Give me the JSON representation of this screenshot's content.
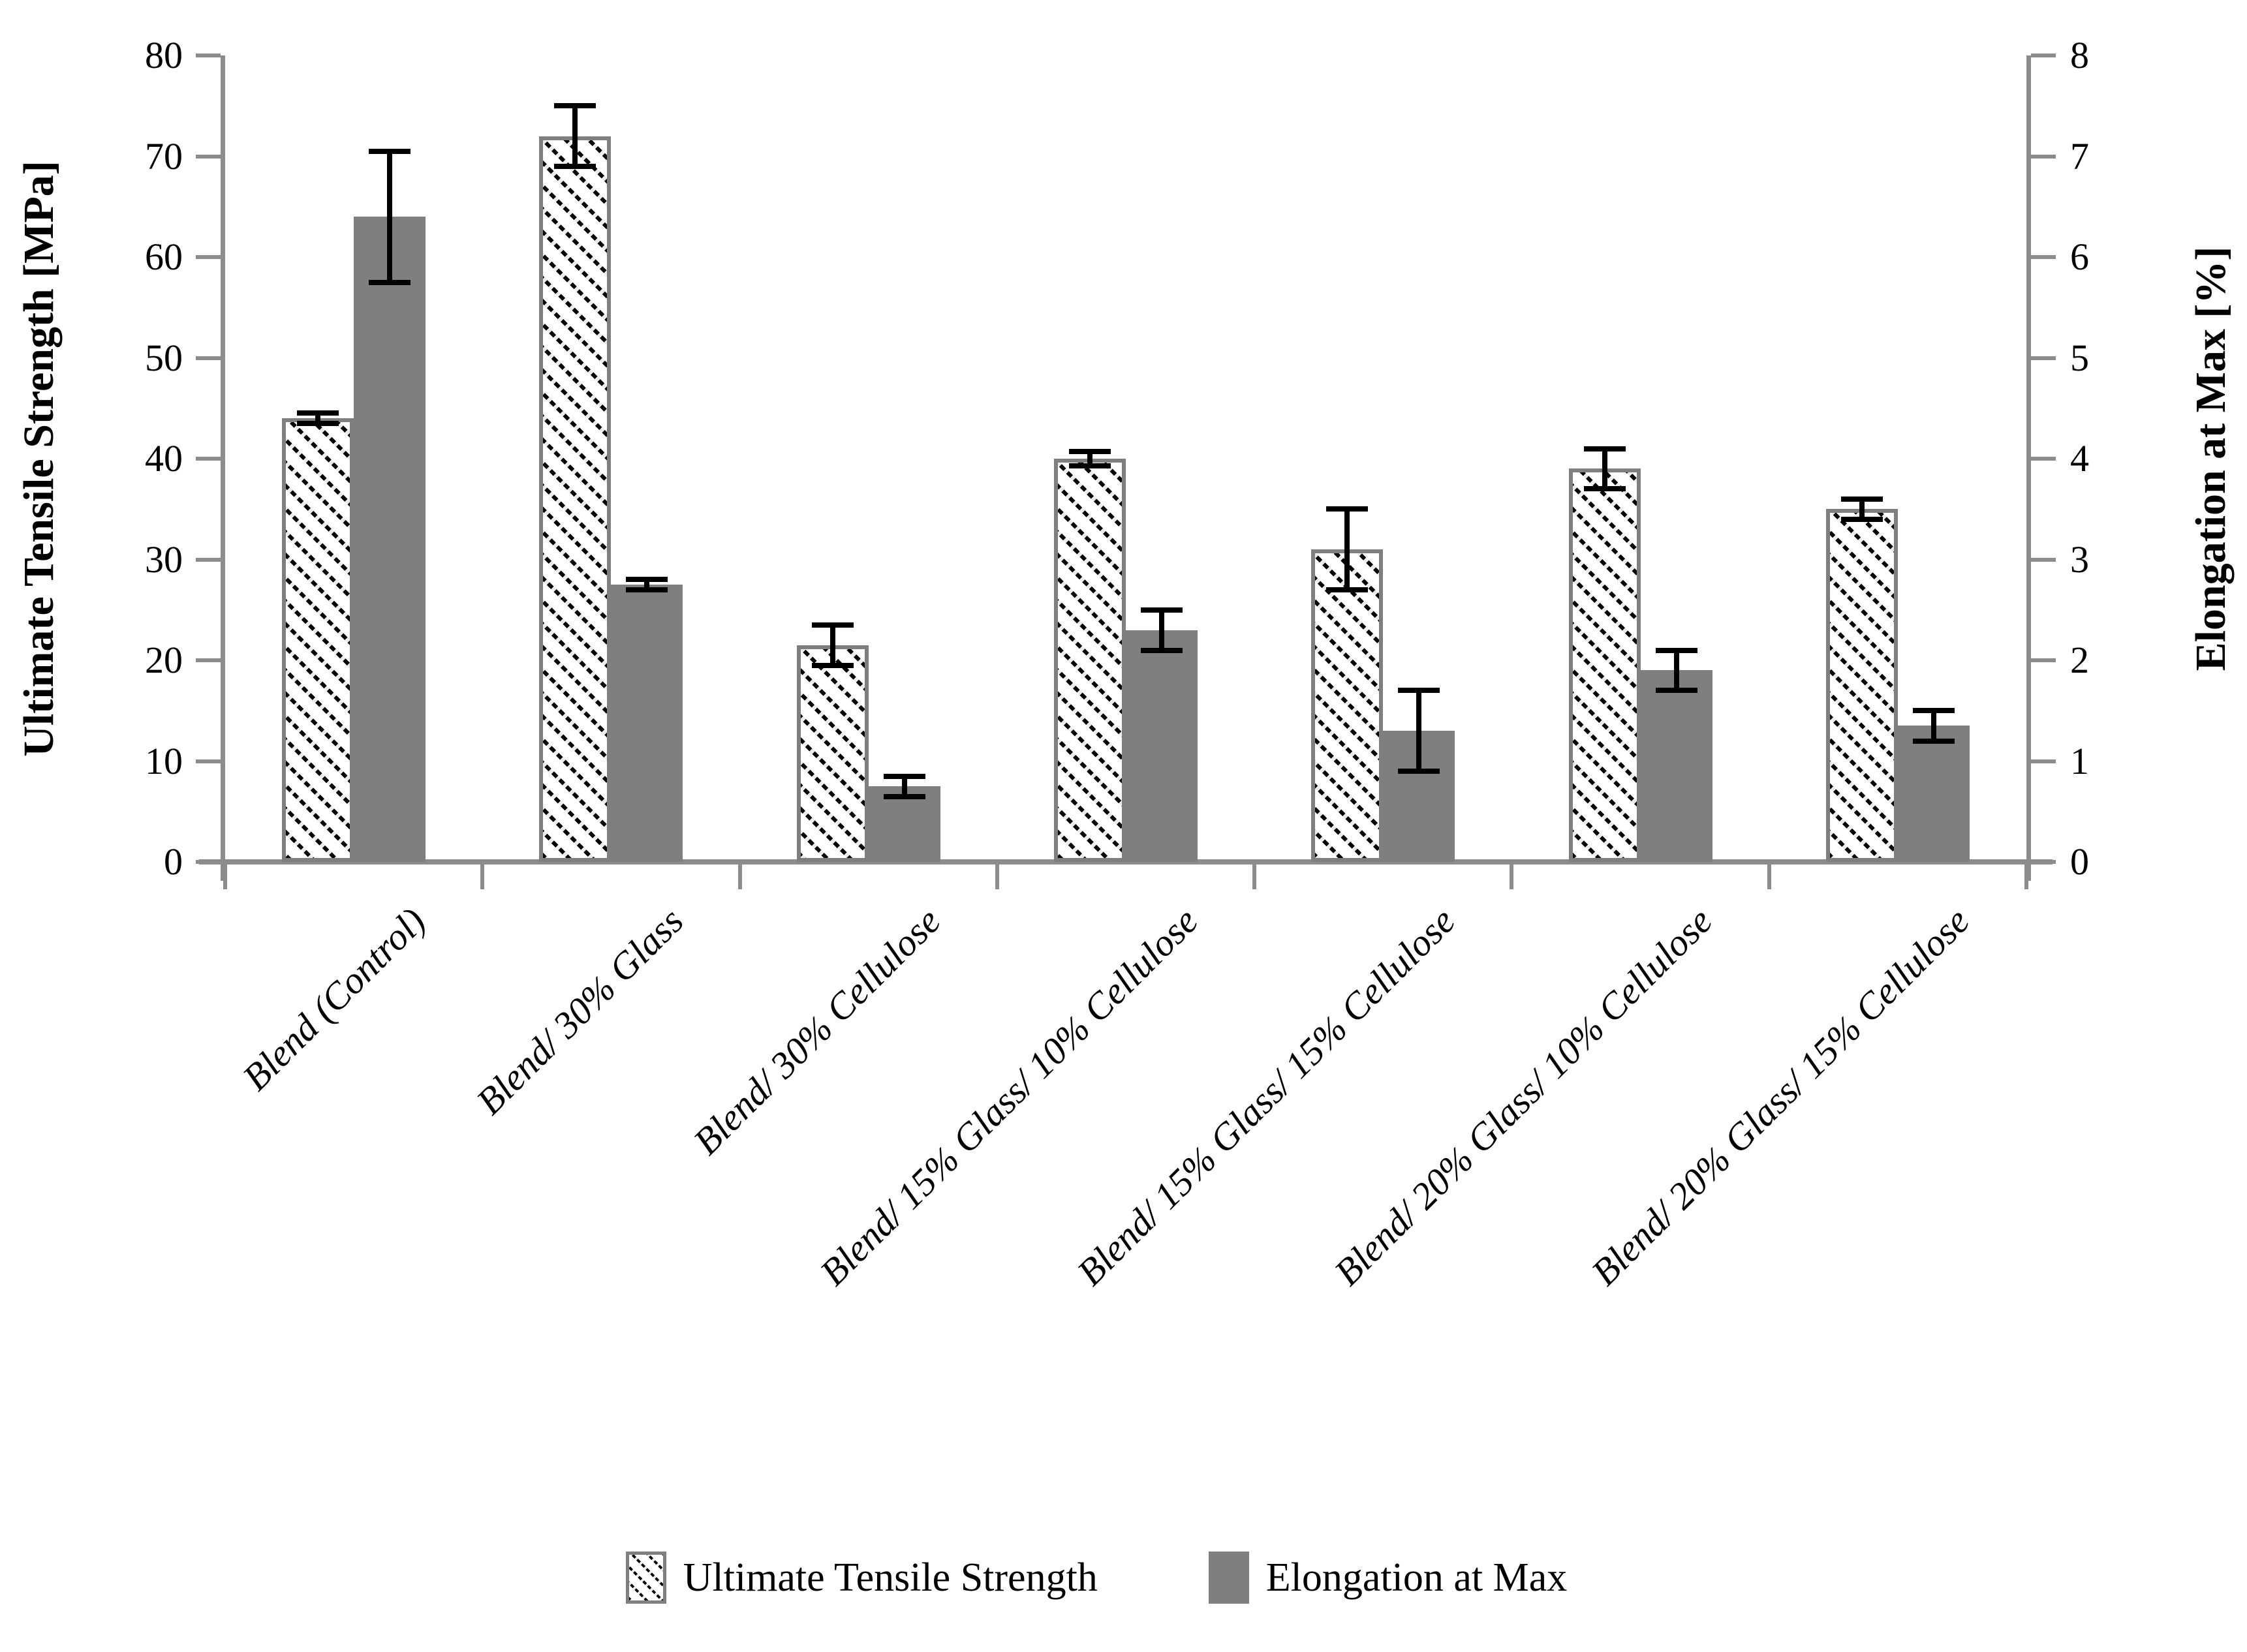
{
  "colors": {
    "bar_gray": "#7f7f7f",
    "axis_gray": "#8c8c8c",
    "hatch_line": "#000000",
    "background": "#ffffff"
  },
  "chart_data": {
    "type": "bar",
    "title": "",
    "categories": [
      "Blend (Control)",
      "Blend/ 30% Glass",
      "Blend/ 30% Cellulose",
      "Blend/ 15% Glass/ 10% Cellulose",
      "Blend/ 15% Glass/ 15% Cellulose",
      "Blend/ 20% Glass/ 10% Cellulose",
      "Blend/ 20% Glass/ 15% Cellulose"
    ],
    "series": [
      {
        "name": "Ultimate Tensile Strength",
        "axis": "left",
        "style": "hatched",
        "values": [
          44,
          72,
          21.5,
          40,
          31,
          39,
          35
        ],
        "errors": [
          0.5,
          3,
          2,
          0.7,
          4,
          2,
          1
        ]
      },
      {
        "name": "Elongation at Max",
        "axis": "right",
        "style": "solid",
        "values": [
          6.4,
          2.75,
          0.75,
          2.3,
          1.3,
          1.9,
          1.35
        ],
        "errors": [
          0.65,
          0.05,
          0.1,
          0.2,
          0.4,
          0.2,
          0.15
        ]
      }
    ],
    "y_left": {
      "label": "Ultimate Tensile Strength [MPa]",
      "min": 0,
      "max": 80,
      "step": 10,
      "ticks": [
        0,
        10,
        20,
        30,
        40,
        50,
        60,
        70,
        80
      ]
    },
    "y_right": {
      "label": "Elongation at Max [%]",
      "min": 0,
      "max": 8,
      "step": 1,
      "ticks": [
        0,
        1,
        2,
        3,
        4,
        5,
        6,
        7,
        8
      ]
    },
    "grid": false,
    "error_bars": true,
    "legend_position": "bottom"
  },
  "legend": {
    "items": [
      {
        "label": "Ultimate Tensile Strength",
        "swatch": "hatched"
      },
      {
        "label": "Elongation at Max",
        "swatch": "solid"
      }
    ]
  }
}
